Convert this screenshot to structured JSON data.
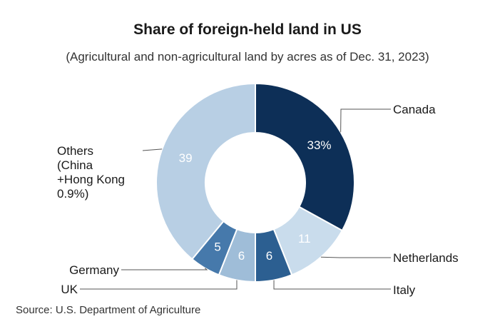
{
  "chart_data": {
    "type": "pie",
    "title": "Share of foreign-held land in US",
    "subtitle": "(Agricultural and non-agricultural land by acres as of Dec. 31, 2023)",
    "source": "Source: U.S. Department of Agriculture",
    "donut": true,
    "slices": [
      {
        "label": [
          "Canada"
        ],
        "value": 33,
        "value_label": "33%",
        "color": "#0d2f57"
      },
      {
        "label": [
          "Netherlands"
        ],
        "value": 11,
        "value_label": "11",
        "color": "#c9dcec"
      },
      {
        "label": [
          "Italy"
        ],
        "value": 6,
        "value_label": "6",
        "color": "#2c5f91"
      },
      {
        "label": [
          "UK"
        ],
        "value": 6,
        "value_label": "6",
        "color": "#9fbdd8"
      },
      {
        "label": [
          "Germany"
        ],
        "value": 5,
        "value_label": "5",
        "color": "#4679ab"
      },
      {
        "label": [
          "Others",
          "(China",
          "+Hong Kong",
          "0.9%)"
        ],
        "value": 39,
        "value_label": "39",
        "color": "#b8cfe4"
      }
    ]
  }
}
